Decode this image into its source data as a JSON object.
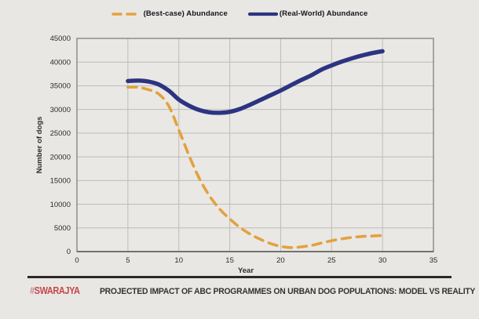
{
  "legend": {
    "items": [
      {
        "label": "(Best-case) Abundance",
        "color": "#e2a240",
        "style": "dashed"
      },
      {
        "label": "(Real-World) Abundance",
        "color": "#2c3481",
        "style": "solid"
      }
    ]
  },
  "chart_data": {
    "type": "line",
    "title": "",
    "xlabel": "Year",
    "ylabel": "Number of dogs",
    "xlim": [
      0,
      35
    ],
    "ylim": [
      0,
      45000
    ],
    "xticks": [
      0,
      5,
      10,
      15,
      20,
      25,
      30,
      35
    ],
    "yticks": [
      0,
      5000,
      10000,
      15000,
      20000,
      25000,
      30000,
      35000,
      40000,
      45000
    ],
    "grid": true,
    "legend_position": "top",
    "series": [
      {
        "name": "(Best-case) Abundance",
        "color": "#e2a240",
        "line_style": "dashed",
        "x": [
          5,
          6,
          7,
          8,
          9,
          10,
          11,
          12,
          13,
          14,
          15,
          16,
          17,
          18,
          19,
          20,
          21,
          22,
          23,
          24,
          25,
          26,
          27,
          28,
          29,
          30
        ],
        "y": [
          34700,
          34700,
          34200,
          33300,
          30800,
          25700,
          20300,
          15500,
          11800,
          9000,
          6900,
          5100,
          3700,
          2600,
          1700,
          1100,
          850,
          1000,
          1300,
          1800,
          2300,
          2700,
          3000,
          3200,
          3300,
          3400
        ]
      },
      {
        "name": "(Real-World) Abundance",
        "color": "#2c3481",
        "line_style": "solid",
        "x": [
          5,
          6,
          7,
          8,
          9,
          10,
          11,
          12,
          13,
          14,
          15,
          16,
          17,
          18,
          19,
          20,
          21,
          22,
          23,
          24,
          25,
          26,
          27,
          28,
          29,
          30
        ],
        "y": [
          36000,
          36100,
          35900,
          35300,
          34000,
          32100,
          30800,
          29900,
          29400,
          29300,
          29500,
          30100,
          31000,
          32000,
          33000,
          34000,
          35100,
          36200,
          37200,
          38400,
          39300,
          40100,
          40800,
          41400,
          41900,
          42300
        ]
      }
    ]
  },
  "footer": {
    "brand_hash": "#",
    "brand_name": "SWARAJYA",
    "caption": "PROJECTED IMPACT OF ABC PROGRAMMES ON URBAN DOG POPULATIONS: MODEL VS REALITY"
  },
  "colors": {
    "background": "#e9e7e4",
    "plot_bg": "#eae8e5",
    "grid": "#bebcb9",
    "axis": "#7a7874",
    "tick_text": "#2e2c2a",
    "divider": "#2b2a28",
    "brand_red": "#c4474c",
    "caption_text": "#343230"
  }
}
